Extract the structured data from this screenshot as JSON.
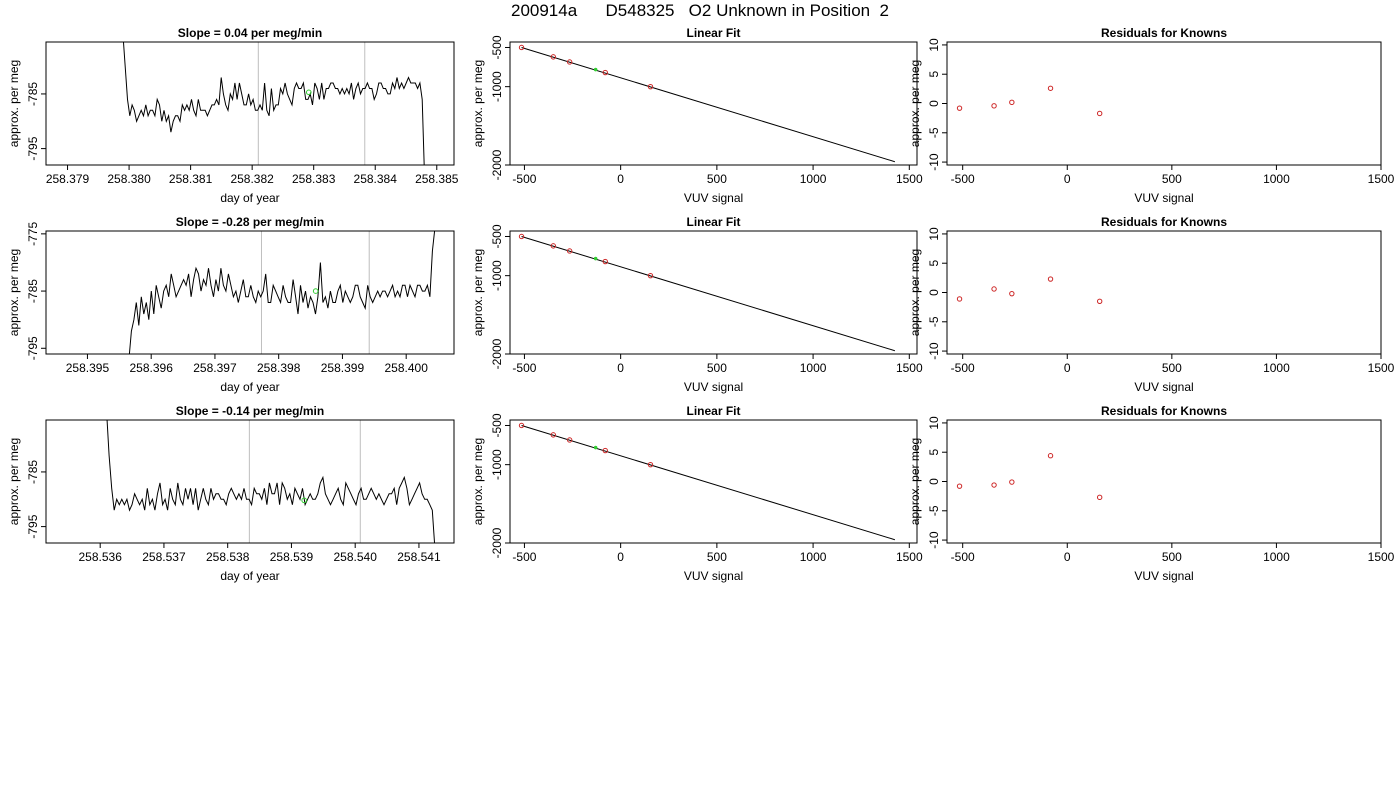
{
  "figure": {
    "title": "200914a      D548325   O2 Unknown in Position  2"
  },
  "chart_data": [
    {
      "type": "line",
      "row": 0,
      "title": "Slope =  0.04  per meg/min",
      "xlabel": "day of year",
      "ylabel": "approx. per meg",
      "xlim": [
        258.37865,
        258.38528
      ],
      "ylim": [
        -798,
        -775.5
      ],
      "xticks": [
        258.379,
        258.38,
        258.381,
        258.382,
        258.383,
        258.384,
        258.385
      ],
      "xtick_labels": [
        "258.379",
        "258.380",
        "258.381",
        "258.382",
        "258.383",
        "258.384",
        "258.385"
      ],
      "yticks": [
        -785,
        -795
      ],
      "ytick_labels": [
        "-785",
        "-795"
      ],
      "vlines": [
        258.3821,
        258.38383
      ],
      "signal_x_range": [
        258.3799,
        258.3848
      ],
      "marker": {
        "x": 258.38292,
        "y": -784.7
      },
      "series": [
        {
          "values": [
            -774,
            -780,
            -786,
            -789,
            -787,
            -788,
            -790,
            -789,
            -788,
            -789,
            -787,
            -789,
            -788,
            -788,
            -789,
            -786,
            -787,
            -790,
            -788,
            -790,
            -789,
            -792,
            -790,
            -789,
            -789,
            -790,
            -787,
            -788,
            -787,
            -788,
            -786,
            -788,
            -789,
            -786,
            -788,
            -788,
            -788,
            -789,
            -788,
            -787,
            -787,
            -786,
            -787,
            -782,
            -785,
            -787,
            -788,
            -785,
            -786,
            -783,
            -786,
            -783,
            -785,
            -787,
            -787,
            -785,
            -787,
            -786,
            -788,
            -788,
            -787,
            -788,
            -783,
            -788,
            -789,
            -784,
            -788,
            -787,
            -787,
            -784,
            -785,
            -783,
            -785,
            -786,
            -787,
            -784,
            -783,
            -784,
            -784,
            -783,
            -786,
            -786,
            -785,
            -787,
            -783,
            -784,
            -786,
            -783,
            -786,
            -784,
            -784,
            -783,
            -783,
            -784,
            -784,
            -785,
            -784,
            -785,
            -784,
            -785,
            -783,
            -786,
            -784,
            -783,
            -785,
            -784,
            -784,
            -783,
            -784,
            -784,
            -786,
            -785,
            -783,
            -783,
            -784,
            -784,
            -785,
            -785,
            -783,
            -784,
            -782,
            -784,
            -783,
            -784,
            -783,
            -782,
            -783,
            -783,
            -783,
            -784,
            -783,
            -786,
            -800
          ]
        }
      ]
    },
    {
      "type": "scatter",
      "row": 0,
      "title": "Linear Fit",
      "xlabel": "VUV signal",
      "ylabel": "approx. per meg",
      "xlim": [
        -575,
        1540
      ],
      "ylim": [
        -2000,
        -430
      ],
      "xticks": [
        -500,
        0,
        500,
        1000,
        1500
      ],
      "xtick_labels": [
        "-500",
        "0",
        "500",
        "1000",
        "1500"
      ],
      "yticks": [
        -500,
        -1000,
        -2000
      ],
      "ytick_labels": [
        "-500",
        "-1000",
        "-2000"
      ],
      "fit_line": {
        "x": [
          -515,
          1425
        ],
        "y": [
          -500,
          -1958
        ]
      },
      "knowns": {
        "x": [
          -515,
          -350,
          -265,
          -80,
          155
        ],
        "y": [
          -500,
          -620,
          -685,
          -820,
          -1000
        ]
      },
      "unknown": {
        "x": -130,
        "y": -782
      }
    },
    {
      "type": "scatter",
      "row": 0,
      "title": "Residuals for Knowns",
      "xlabel": "VUV signal",
      "ylabel": "approx. per meg",
      "xlim": [
        -575,
        1500
      ],
      "ylim": [
        -10.5,
        10.5
      ],
      "xticks": [
        -500,
        0,
        500,
        1000,
        1500
      ],
      "xtick_labels": [
        "-500",
        "0",
        "500",
        "1000",
        "1500"
      ],
      "yticks": [
        10,
        5,
        0,
        -5,
        -10
      ],
      "ytick_labels": [
        "10",
        "5",
        "0",
        "-5",
        "-10"
      ],
      "points": {
        "x": [
          -515,
          -350,
          -265,
          -80,
          155
        ],
        "y": [
          -0.8,
          -0.4,
          0.2,
          2.6,
          -1.7
        ]
      }
    },
    {
      "type": "line",
      "row": 1,
      "title": "Slope =  -0.28  per meg/min",
      "xlabel": "day of year",
      "ylabel": "approx. per meg",
      "xlim": [
        258.39435,
        258.40075
      ],
      "ylim": [
        -796,
        -774.5
      ],
      "xticks": [
        258.395,
        258.396,
        258.397,
        258.398,
        258.399,
        258.4
      ],
      "xtick_labels": [
        "258.395",
        "258.396",
        "258.397",
        "258.398",
        "258.399",
        "258.400"
      ],
      "yticks": [
        -775,
        -785,
        -795
      ],
      "ytick_labels": [
        "-775",
        "-785",
        "-795"
      ],
      "vlines": [
        258.39773,
        258.39942
      ],
      "signal_x_range": [
        258.39565,
        258.40045
      ],
      "marker": {
        "x": 258.39858,
        "y": -785
      },
      "series": [
        {
          "values": [
            -797,
            -792,
            -790,
            -787,
            -791,
            -786,
            -789,
            -787,
            -790,
            -785,
            -789,
            -784,
            -786,
            -788,
            -785,
            -784,
            -786,
            -782,
            -784,
            -786,
            -785,
            -784,
            -783,
            -784,
            -782,
            -786,
            -783,
            -781,
            -782,
            -785,
            -783,
            -784,
            -781,
            -784,
            -786,
            -783,
            -785,
            -781,
            -784,
            -785,
            -782,
            -784,
            -786,
            -785,
            -787,
            -785,
            -783,
            -786,
            -786,
            -784,
            -786,
            -787,
            -785,
            -786,
            -785,
            -782,
            -787,
            -787,
            -784,
            -785,
            -786,
            -787,
            -784,
            -786,
            -787,
            -787,
            -783,
            -786,
            -789,
            -784,
            -787,
            -785,
            -788,
            -786,
            -787,
            -789,
            -786,
            -780,
            -787,
            -786,
            -788,
            -785,
            -787,
            -787,
            -785,
            -784,
            -787,
            -785,
            -786,
            -787,
            -786,
            -784,
            -784,
            -786,
            -787,
            -788,
            -784,
            -786,
            -787,
            -786,
            -785,
            -786,
            -785,
            -785,
            -786,
            -785,
            -784,
            -786,
            -785,
            -786,
            -784,
            -784,
            -786,
            -784,
            -785,
            -786,
            -784,
            -784,
            -785,
            -785,
            -784,
            -786,
            -778,
            -774
          ]
        }
      ]
    },
    {
      "type": "scatter",
      "row": 1,
      "title": "Linear Fit",
      "xlabel": "VUV signal",
      "ylabel": "approx. per meg",
      "xlim": [
        -575,
        1540
      ],
      "ylim": [
        -2000,
        -430
      ],
      "xticks": [
        -500,
        0,
        500,
        1000,
        1500
      ],
      "xtick_labels": [
        "-500",
        "0",
        "500",
        "1000",
        "1500"
      ],
      "yticks": [
        -500,
        -1000,
        -2000
      ],
      "ytick_labels": [
        "-500",
        "-1000",
        "-2000"
      ],
      "fit_line": {
        "x": [
          -515,
          1425
        ],
        "y": [
          -500,
          -1958
        ]
      },
      "knowns": {
        "x": [
          -515,
          -350,
          -265,
          -80,
          155
        ],
        "y": [
          -500,
          -620,
          -685,
          -820,
          -1000
        ]
      },
      "unknown": {
        "x": -130,
        "y": -782
      }
    },
    {
      "type": "scatter",
      "row": 1,
      "title": "Residuals for Knowns",
      "xlabel": "VUV signal",
      "ylabel": "approx. per meg",
      "xlim": [
        -575,
        1500
      ],
      "ylim": [
        -10.5,
        10.5
      ],
      "xticks": [
        -500,
        0,
        500,
        1000,
        1500
      ],
      "xtick_labels": [
        "-500",
        "0",
        "500",
        "1000",
        "1500"
      ],
      "yticks": [
        10,
        5,
        0,
        -5,
        -10
      ],
      "ytick_labels": [
        "10",
        "5",
        "0",
        "-5",
        "-10"
      ],
      "points": {
        "x": [
          -515,
          -350,
          -265,
          -80,
          155
        ],
        "y": [
          -1.1,
          0.6,
          -0.2,
          2.3,
          -1.5
        ]
      }
    },
    {
      "type": "line",
      "row": 2,
      "title": "Slope =  -0.14  per meg/min",
      "xlabel": "day of year",
      "ylabel": "approx. per meg",
      "xlim": [
        258.53515,
        258.54155
      ],
      "ylim": [
        -798,
        -775.5
      ],
      "xticks": [
        258.536,
        258.537,
        258.538,
        258.539,
        258.54,
        258.541
      ],
      "xtick_labels": [
        "258.536",
        "258.537",
        "258.538",
        "258.539",
        "258.540",
        "258.541"
      ],
      "yticks": [
        -785,
        -795
      ],
      "ytick_labels": [
        "-785",
        "-795"
      ],
      "vlines": [
        258.53834,
        258.54008
      ],
      "signal_x_range": [
        258.5361,
        258.54125
      ],
      "marker": {
        "x": 258.5392,
        "y": -790.2
      },
      "series": [
        {
          "values": [
            -774,
            -782,
            -788,
            -792,
            -790,
            -791,
            -790,
            -791,
            -790,
            -792,
            -791,
            -789,
            -790,
            -791,
            -790,
            -792,
            -788,
            -791,
            -790,
            -792,
            -789,
            -787,
            -791,
            -790,
            -792,
            -788,
            -790,
            -791,
            -787,
            -790,
            -791,
            -788,
            -790,
            -788,
            -791,
            -788,
            -792,
            -790,
            -788,
            -790,
            -791,
            -788,
            -790,
            -789,
            -789,
            -790,
            -790,
            -791,
            -789,
            -788,
            -789,
            -790,
            -789,
            -790,
            -788,
            -790,
            -790,
            -791,
            -788,
            -789,
            -789,
            -790,
            -788,
            -791,
            -787,
            -789,
            -789,
            -787,
            -791,
            -787,
            -788,
            -790,
            -789,
            -791,
            -788,
            -789,
            -790,
            -788,
            -791,
            -790,
            -789,
            -790,
            -790,
            -789,
            -787,
            -786,
            -789,
            -790,
            -791,
            -790,
            -789,
            -788,
            -790,
            -791,
            -787,
            -788,
            -789,
            -790,
            -791,
            -789,
            -788,
            -790,
            -790,
            -789,
            -788,
            -789,
            -790,
            -789,
            -790,
            -791,
            -790,
            -789,
            -789,
            -788,
            -791,
            -788,
            -787,
            -786,
            -788,
            -791,
            -790,
            -789,
            -788,
            -787,
            -789,
            -790,
            -790,
            -791,
            -792,
            -799
          ]
        }
      ]
    },
    {
      "type": "scatter",
      "row": 2,
      "title": "Linear Fit",
      "xlabel": "VUV signal",
      "ylabel": "approx. per meg",
      "xlim": [
        -575,
        1540
      ],
      "ylim": [
        -2000,
        -430
      ],
      "xticks": [
        -500,
        0,
        500,
        1000,
        1500
      ],
      "xtick_labels": [
        "-500",
        "0",
        "500",
        "1000",
        "1500"
      ],
      "yticks": [
        -500,
        -1000,
        -2000
      ],
      "ytick_labels": [
        "-500",
        "-1000",
        "-2000"
      ],
      "fit_line": {
        "x": [
          -515,
          1425
        ],
        "y": [
          -500,
          -1958
        ]
      },
      "knowns": {
        "x": [
          -515,
          -350,
          -265,
          -80,
          155
        ],
        "y": [
          -500,
          -620,
          -685,
          -820,
          -1000
        ]
      },
      "unknown": {
        "x": -130,
        "y": -782
      }
    },
    {
      "type": "scatter",
      "row": 2,
      "title": "Residuals for Knowns",
      "xlabel": "VUV signal",
      "ylabel": "approx. per meg",
      "xlim": [
        -575,
        1500
      ],
      "ylim": [
        -10.5,
        10.5
      ],
      "xticks": [
        -500,
        0,
        500,
        1000,
        1500
      ],
      "xtick_labels": [
        "-500",
        "0",
        "500",
        "1000",
        "1500"
      ],
      "yticks": [
        10,
        5,
        0,
        -5,
        -10
      ],
      "ytick_labels": [
        "10",
        "5",
        "0",
        "-5",
        "-10"
      ],
      "points": {
        "x": [
          -515,
          -350,
          -265,
          -80,
          155
        ],
        "y": [
          -0.8,
          -0.6,
          -0.1,
          4.4,
          -2.7
        ]
      }
    }
  ],
  "colors": {
    "axis": "#000000",
    "line": "#000000",
    "vline": "#bebebe",
    "known_point": "#cd2626",
    "unknown_point": "#32cd32"
  }
}
